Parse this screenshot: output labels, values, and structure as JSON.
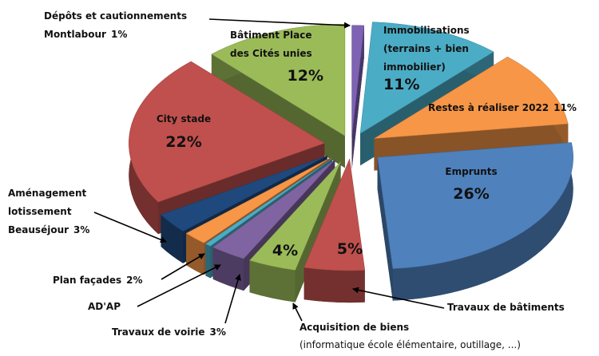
{
  "chart_data": {
    "type": "pie3d",
    "categories": [
      [
        "Dépôts et cautionnements",
        "Montlabour"
      ],
      [
        "Immobilisations",
        "(terrains + bien",
        "immobilier)"
      ],
      [
        "Restes à réaliser 2022"
      ],
      [
        "Emprunts"
      ],
      [
        "Travaux de bâtiments"
      ],
      [
        "Acquisition de biens"
      ],
      [
        "Travaux de voirie"
      ],
      [
        "AD'AP"
      ],
      [
        "Plan façades"
      ],
      [
        "Aménagement",
        "lotissement",
        "Beauséjour"
      ],
      [
        "City stade"
      ],
      [
        "Bâtiment Place",
        "des Cités unies"
      ]
    ],
    "notes": [
      "(informatique école élémentaire, outillage, ...)"
    ],
    "values": [
      1,
      11,
      11,
      26,
      5,
      4,
      3,
      0.5,
      2,
      3,
      22,
      12
    ],
    "value_labels": [
      "1%",
      "11%",
      "11%",
      "26%",
      "5%",
      "4%",
      "3%",
      null,
      "2%",
      "3%",
      "22%",
      "12%"
    ],
    "colors": [
      "#7e62b4",
      "#4bacc6",
      "#f79646",
      "#4f81bd",
      "#c0504d",
      "#9bbb59",
      "#8064a2",
      "#4bacc6",
      "#f79646",
      "#1f497d",
      "#c0504d",
      "#9bbb59"
    ]
  }
}
